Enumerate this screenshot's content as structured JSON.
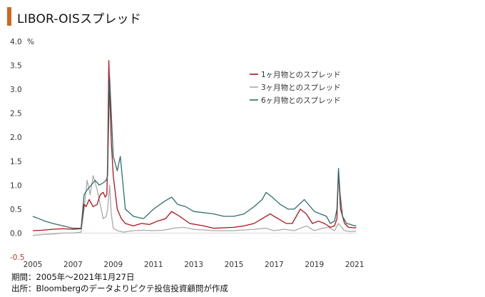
{
  "title": "LIBOR-OISスプレッド",
  "footer": {
    "period": "期間：2005年～2021年1月27日",
    "source": "出所：Bloombergのデータよりピクテ投信投資顧問が作成"
  },
  "chart_data": {
    "type": "line",
    "ylabel": "%",
    "ylim": [
      -0.5,
      4.0
    ],
    "xlim": [
      2005.0,
      2021.1
    ],
    "y_ticks": [
      "4.0",
      "3.5",
      "3.0",
      "2.5",
      "2.0",
      "1.5",
      "1.0",
      "0.5",
      "0.0",
      "-0.5"
    ],
    "y_tick_values": [
      4.0,
      3.5,
      3.0,
      2.5,
      2.0,
      1.5,
      1.0,
      0.5,
      0.0,
      -0.5
    ],
    "x_ticks": [
      "2005",
      "2007",
      "2009",
      "2011",
      "2013",
      "2015",
      "2017",
      "2019",
      "2021"
    ],
    "x_tick_values": [
      2005,
      2007,
      2009,
      2011,
      2013,
      2015,
      2017,
      2019,
      2021
    ],
    "grid": false,
    "legend_position": "top-right",
    "series": [
      {
        "name": "1ヶ月物とのスプレッド",
        "color": "#b0121b",
        "x": [
          2005.0,
          2005.5,
          2006.0,
          2006.5,
          2007.0,
          2007.4,
          2007.55,
          2007.65,
          2007.8,
          2008.0,
          2008.2,
          2008.35,
          2008.5,
          2008.6,
          2008.68,
          2008.72,
          2008.78,
          2008.82,
          2008.9,
          2009.0,
          2009.2,
          2009.4,
          2009.6,
          2010.0,
          2010.4,
          2010.8,
          2011.2,
          2011.6,
          2011.9,
          2012.3,
          2012.8,
          2013.5,
          2014.0,
          2015.0,
          2015.5,
          2016.0,
          2016.4,
          2016.8,
          2017.2,
          2017.6,
          2017.9,
          2018.1,
          2018.3,
          2018.6,
          2018.9,
          2019.2,
          2019.5,
          2019.8,
          2020.0,
          2020.12,
          2020.2,
          2020.3,
          2020.5,
          2020.7,
          2021.0,
          2021.08
        ],
        "values": [
          0.05,
          0.06,
          0.08,
          0.09,
          0.08,
          0.09,
          0.6,
          0.55,
          0.7,
          0.55,
          0.6,
          0.8,
          0.85,
          0.75,
          0.8,
          1.5,
          3.6,
          3.0,
          1.9,
          1.2,
          0.5,
          0.3,
          0.2,
          0.15,
          0.2,
          0.18,
          0.25,
          0.3,
          0.45,
          0.35,
          0.2,
          0.15,
          0.1,
          0.12,
          0.15,
          0.2,
          0.3,
          0.4,
          0.3,
          0.2,
          0.2,
          0.35,
          0.5,
          0.4,
          0.2,
          0.25,
          0.2,
          0.12,
          0.15,
          0.3,
          1.3,
          0.5,
          0.2,
          0.12,
          0.11,
          0.12
        ]
      },
      {
        "name": "3ヶ月物とのスプレッド",
        "color": "#a9a9a9",
        "x": [
          2005.0,
          2005.5,
          2006.0,
          2006.5,
          2007.0,
          2007.4,
          2007.55,
          2007.7,
          2007.85,
          2008.0,
          2008.2,
          2008.35,
          2008.5,
          2008.65,
          2008.72,
          2008.78,
          2008.82,
          2008.9,
          2009.0,
          2009.2,
          2009.5,
          2010.0,
          2010.5,
          2011.0,
          2011.5,
          2012.0,
          2012.5,
          2013.0,
          2014.0,
          2015.0,
          2016.0,
          2016.6,
          2017.0,
          2017.5,
          2018.0,
          2018.3,
          2018.6,
          2019.0,
          2019.4,
          2019.7,
          2020.0,
          2020.2,
          2020.3,
          2020.5,
          2020.8,
          2021.08
        ],
        "values": [
          -0.05,
          -0.03,
          -0.02,
          0.0,
          0.0,
          0.02,
          0.5,
          1.1,
          0.8,
          1.2,
          0.9,
          0.6,
          0.3,
          0.35,
          0.5,
          0.8,
          1.0,
          0.4,
          0.1,
          0.05,
          0.02,
          0.05,
          0.06,
          0.05,
          0.06,
          0.1,
          0.12,
          0.08,
          0.05,
          0.05,
          0.08,
          0.1,
          0.05,
          0.08,
          0.05,
          0.1,
          0.15,
          0.05,
          0.1,
          0.12,
          0.05,
          0.2,
          0.15,
          0.05,
          0.03,
          0.04
        ]
      },
      {
        "name": "6ヶ月物とのスプレッド",
        "color": "#2e6e6a",
        "x": [
          2005.0,
          2005.3,
          2005.6,
          2006.0,
          2006.5,
          2007.0,
          2007.4,
          2007.55,
          2007.7,
          2007.9,
          2008.1,
          2008.3,
          2008.5,
          2008.65,
          2008.72,
          2008.78,
          2008.82,
          2008.9,
          2009.0,
          2009.2,
          2009.35,
          2009.6,
          2010.0,
          2010.5,
          2011.0,
          2011.5,
          2011.9,
          2012.2,
          2012.6,
          2013.0,
          2014.0,
          2014.5,
          2015.0,
          2015.5,
          2016.0,
          2016.4,
          2016.6,
          2016.9,
          2017.3,
          2017.7,
          2018.0,
          2018.25,
          2018.5,
          2018.8,
          2019.0,
          2019.3,
          2019.6,
          2019.8,
          2020.0,
          2020.12,
          2020.2,
          2020.28,
          2020.4,
          2020.6,
          2020.8,
          2021.0,
          2021.08
        ],
        "values": [
          0.35,
          0.3,
          0.25,
          0.2,
          0.15,
          0.1,
          0.1,
          0.8,
          0.9,
          1.0,
          1.1,
          1.0,
          1.05,
          1.1,
          1.2,
          2.5,
          3.25,
          2.5,
          1.6,
          1.3,
          1.6,
          0.5,
          0.35,
          0.3,
          0.5,
          0.65,
          0.75,
          0.6,
          0.55,
          0.45,
          0.4,
          0.35,
          0.35,
          0.4,
          0.55,
          0.7,
          0.85,
          0.75,
          0.6,
          0.5,
          0.5,
          0.6,
          0.7,
          0.55,
          0.45,
          0.4,
          0.35,
          0.2,
          0.25,
          0.5,
          1.35,
          0.8,
          0.35,
          0.2,
          0.18,
          0.15,
          0.16
        ]
      }
    ]
  }
}
